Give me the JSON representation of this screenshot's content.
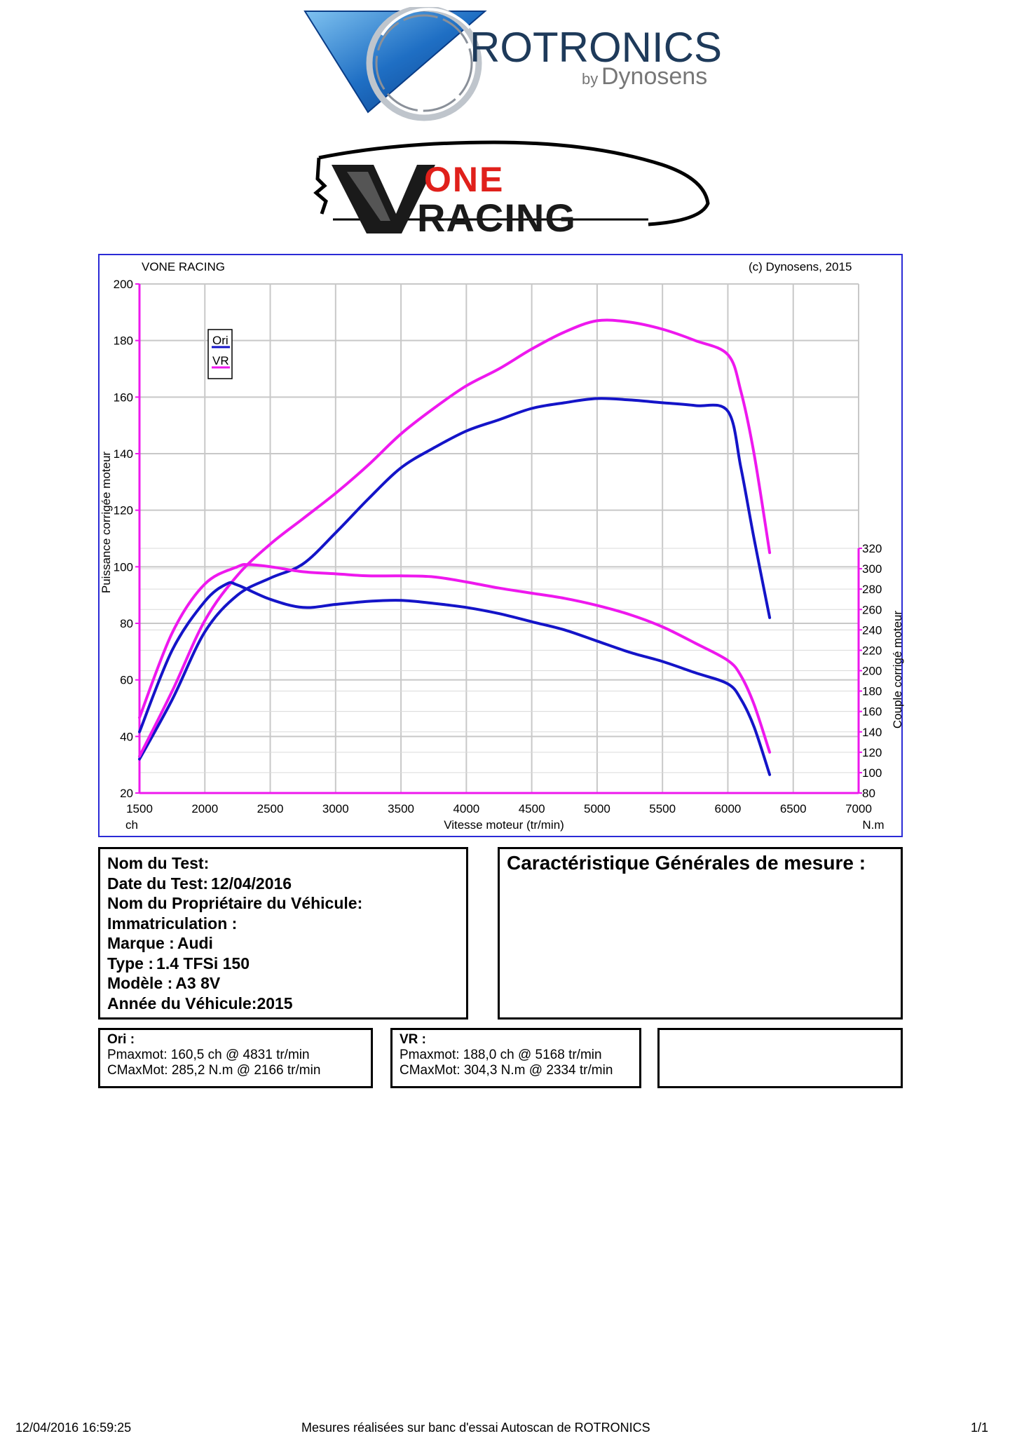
{
  "logos": {
    "rotronics_title": "ROTRONICS",
    "rotronics_by": "by",
    "rotronics_brand": "Dynosens",
    "vone_top": "ONE",
    "vone_bottom": "RACING"
  },
  "chart_header": {
    "left": "VONE RACING",
    "right": "(c) Dynosens, 2015"
  },
  "chart_data": {
    "type": "line",
    "title": "",
    "xlabel": "Vitesse moteur (tr/min)",
    "ylabel_left": "Puissance corrigée moteur",
    "ylabel_right": "Couple corrigé moteur",
    "unit_left": "ch",
    "unit_right": "N.m",
    "xlim": [
      1500,
      7000
    ],
    "ylim_left": [
      20,
      200
    ],
    "ylim_right": [
      80,
      320
    ],
    "xticks": [
      1500,
      2000,
      2500,
      3000,
      3500,
      4000,
      4500,
      5000,
      5500,
      6000,
      6500,
      7000
    ],
    "yticks_left": [
      20,
      40,
      60,
      80,
      100,
      120,
      140,
      160,
      180,
      200
    ],
    "yticks_right": [
      80,
      100,
      120,
      140,
      160,
      180,
      200,
      220,
      240,
      260,
      280,
      300,
      320
    ],
    "grid": true,
    "legend_position": "top-left",
    "colors": {
      "Ori": "#1414c8",
      "VR": "#ee18ee"
    },
    "series": [
      {
        "name": "Ori",
        "kind": "power",
        "axis": "left",
        "x": [
          1500,
          1750,
          2000,
          2250,
          2500,
          2750,
          3000,
          3250,
          3500,
          3750,
          4000,
          4250,
          4500,
          4750,
          5000,
          5250,
          5500,
          5750,
          6000,
          6100,
          6200,
          6320
        ],
        "y": [
          32,
          53,
          77,
          90,
          96,
          101,
          112,
          124,
          135,
          142,
          148,
          152,
          156,
          158,
          159.5,
          159,
          158,
          157,
          155,
          135,
          110,
          82
        ]
      },
      {
        "name": "VR",
        "kind": "power",
        "axis": "left",
        "x": [
          1500,
          1750,
          2000,
          2250,
          2500,
          2750,
          3000,
          3250,
          3500,
          3750,
          4000,
          4250,
          4500,
          4750,
          5000,
          5250,
          5500,
          5750,
          6000,
          6100,
          6200,
          6320
        ],
        "y": [
          33,
          56,
          81,
          97,
          108,
          117,
          126,
          136,
          147,
          156,
          164,
          170,
          177,
          183,
          187,
          186.5,
          184,
          180,
          175,
          162,
          140,
          105
        ]
      },
      {
        "name": "Ori",
        "kind": "torque",
        "axis": "right",
        "x": [
          1500,
          1750,
          2000,
          2166,
          2250,
          2500,
          2750,
          3000,
          3250,
          3500,
          3750,
          4000,
          4250,
          4500,
          4750,
          5000,
          5250,
          5500,
          5750,
          6000,
          6100,
          6200,
          6320
        ],
        "y": [
          140,
          220,
          268,
          285,
          284,
          270,
          262,
          265,
          268,
          269,
          266,
          262,
          256,
          248,
          240,
          229,
          218,
          209,
          198,
          187,
          172,
          145,
          98
        ]
      },
      {
        "name": "VR",
        "kind": "torque",
        "axis": "right",
        "x": [
          1500,
          1750,
          2000,
          2250,
          2334,
          2500,
          2750,
          3000,
          3250,
          3500,
          3750,
          4000,
          4250,
          4500,
          4750,
          5000,
          5250,
          5500,
          5750,
          6000,
          6100,
          6200,
          6320
        ],
        "y": [
          154,
          237,
          285,
          302,
          304,
          302,
          297,
          295,
          293,
          293,
          292,
          287,
          281,
          276,
          271,
          264,
          255,
          243,
          227,
          210,
          195,
          167,
          120
        ]
      }
    ]
  },
  "test_info": {
    "nom_label": "Nom du Test:",
    "nom_value": "",
    "date_label": "Date du Test:",
    "date_value": "12/04/2016",
    "proprio_label": "Nom du Propriétaire du Véhicule:",
    "proprio_value": "",
    "immat_label": "Immatriculation   :",
    "immat_value": "",
    "marque_label": "Marque   :",
    "marque_value": "Audi",
    "type_label": "Type   :",
    "type_value": "1.4 TFSi 150",
    "modele_label": "Modèle   :",
    "modele_value": "A3 8V",
    "annee_label": "Année du Véhicule:",
    "annee_value": "2015"
  },
  "caracteristiques": {
    "title": "Caractéristique Générales de mesure :"
  },
  "results": {
    "ori": {
      "title": "Ori :",
      "pmax": "Pmaxmot: 160,5 ch @ 4831 tr/min",
      "cmax": "CMaxMot: 285,2 N.m @ 2166 tr/min"
    },
    "vr": {
      "title": "VR :",
      "pmax": "Pmaxmot: 188,0 ch @ 5168 tr/min",
      "cmax": "CMaxMot: 304,3 N.m @ 2334 tr/min"
    }
  },
  "footer": {
    "timestamp": "12/04/2016 16:59:25",
    "center": "Mesures réalisées sur banc d'essai Autoscan de ROTRONICS",
    "page": "1/1"
  }
}
